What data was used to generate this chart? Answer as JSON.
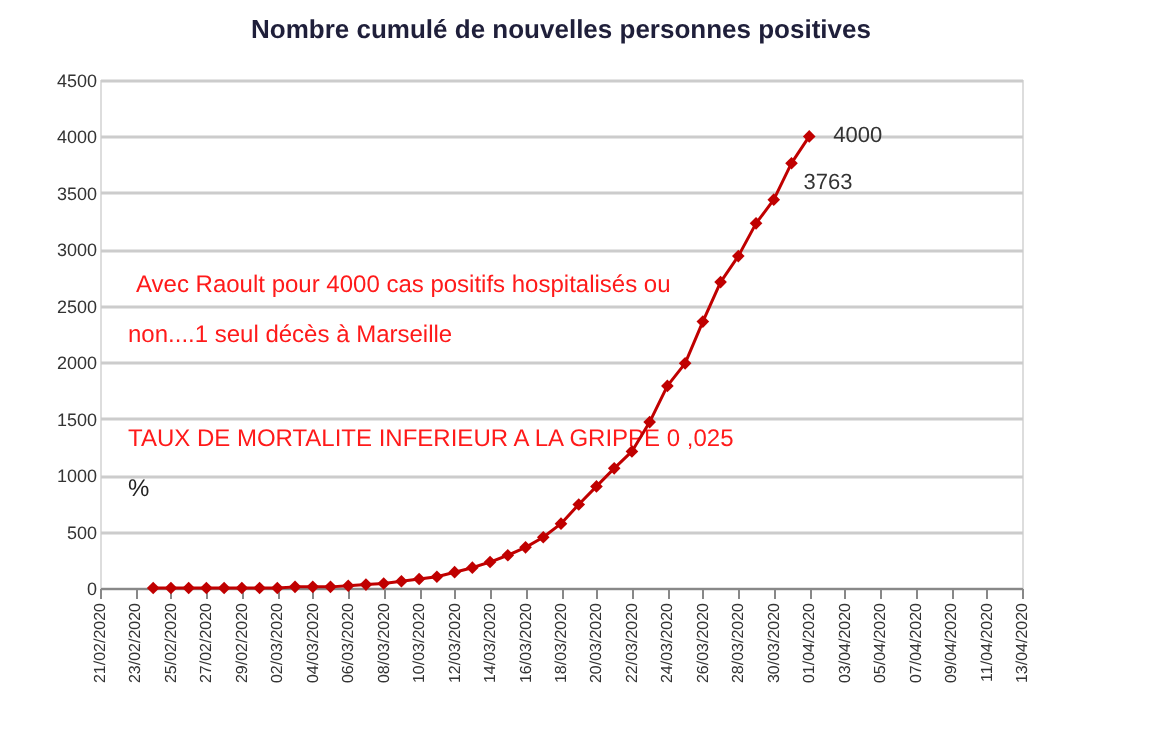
{
  "chart_data": {
    "type": "line",
    "title": "Nombre cumulé de nouvelles personnes positives",
    "x": [
      "2020-02-24",
      "2020-02-25",
      "2020-02-26",
      "2020-02-27",
      "2020-02-28",
      "2020-02-29",
      "2020-03-01",
      "2020-03-02",
      "2020-03-03",
      "2020-03-04",
      "2020-03-05",
      "2020-03-06",
      "2020-03-07",
      "2020-03-08",
      "2020-03-09",
      "2020-03-10",
      "2020-03-11",
      "2020-03-12",
      "2020-03-13",
      "2020-03-14",
      "2020-03-15",
      "2020-03-16",
      "2020-03-17",
      "2020-03-18",
      "2020-03-19",
      "2020-03-20",
      "2020-03-21",
      "2020-03-22",
      "2020-03-23",
      "2020-03-24",
      "2020-03-25",
      "2020-03-26",
      "2020-03-27",
      "2020-03-28",
      "2020-03-29",
      "2020-03-30",
      "2020-03-31",
      "2020-04-01"
    ],
    "series": [
      {
        "color": "#c00000",
        "values": [
          0,
          0,
          0,
          0,
          0,
          0,
          0,
          0,
          10,
          10,
          10,
          20,
          30,
          40,
          60,
          80,
          100,
          140,
          180,
          230,
          290,
          360,
          450,
          570,
          740,
          900,
          1060,
          1210,
          1470,
          1790,
          1990,
          2360,
          2710,
          2940,
          3230,
          3440,
          3763,
          4000
        ],
        "value_labels": [
          null,
          null,
          null,
          null,
          null,
          null,
          null,
          null,
          null,
          null,
          null,
          null,
          null,
          null,
          null,
          null,
          null,
          null,
          null,
          null,
          null,
          null,
          null,
          null,
          null,
          null,
          null,
          null,
          null,
          null,
          null,
          null,
          null,
          null,
          null,
          null,
          "3763",
          "4000"
        ]
      }
    ],
    "marker": "diamond",
    "line_style": "solid",
    "grid": "y",
    "legend": false,
    "xlim": [
      "2020-02-21",
      "2020-04-13"
    ],
    "xticks": [
      {
        "value": "2020-02-21",
        "label": "21/02/2020"
      },
      {
        "value": "2020-02-23",
        "label": "23/02/2020"
      },
      {
        "value": "2020-02-25",
        "label": "25/02/2020"
      },
      {
        "value": "2020-02-27",
        "label": "27/02/2020"
      },
      {
        "value": "2020-02-29",
        "label": "29/02/2020"
      },
      {
        "value": "2020-03-02",
        "label": "02/03/2020"
      },
      {
        "value": "2020-03-04",
        "label": "04/03/2020"
      },
      {
        "value": "2020-03-06",
        "label": "06/03/2020"
      },
      {
        "value": "2020-03-08",
        "label": "08/03/2020"
      },
      {
        "value": "2020-03-10",
        "label": "10/03/2020"
      },
      {
        "value": "2020-03-12",
        "label": "12/03/2020"
      },
      {
        "value": "2020-03-14",
        "label": "14/03/2020"
      },
      {
        "value": "2020-03-16",
        "label": "16/03/2020"
      },
      {
        "value": "2020-03-18",
        "label": "18/03/2020"
      },
      {
        "value": "2020-03-20",
        "label": "20/03/2020"
      },
      {
        "value": "2020-03-22",
        "label": "22/03/2020"
      },
      {
        "value": "2020-03-24",
        "label": "24/03/2020"
      },
      {
        "value": "2020-03-26",
        "label": "26/03/2020"
      },
      {
        "value": "2020-03-28",
        "label": "28/03/2020"
      },
      {
        "value": "2020-03-30",
        "label": "30/03/2020"
      },
      {
        "value": "2020-04-01",
        "label": "01/04/2020"
      },
      {
        "value": "2020-04-03",
        "label": "03/04/2020"
      },
      {
        "value": "2020-04-05",
        "label": "05/04/2020"
      },
      {
        "value": "2020-04-07",
        "label": "07/04/2020"
      },
      {
        "value": "2020-04-09",
        "label": "09/04/2020"
      },
      {
        "value": "2020-04-11",
        "label": "11/04/2020"
      },
      {
        "value": "2020-04-13",
        "label": "13/04/2020"
      }
    ],
    "ylim": [
      0,
      4500
    ],
    "yticks": [
      0,
      500,
      1000,
      1500,
      2000,
      2500,
      3000,
      3500,
      4000,
      4500
    ],
    "annotations": [
      "Avec Raoult  pour 4000 cas positifs  hospitalisés ou",
      "non....1 seul décès   à Marseille",
      "TAUX DE MORTALITE INFERIEUR A LA GRIPPE  0 ,025",
      "%"
    ]
  }
}
